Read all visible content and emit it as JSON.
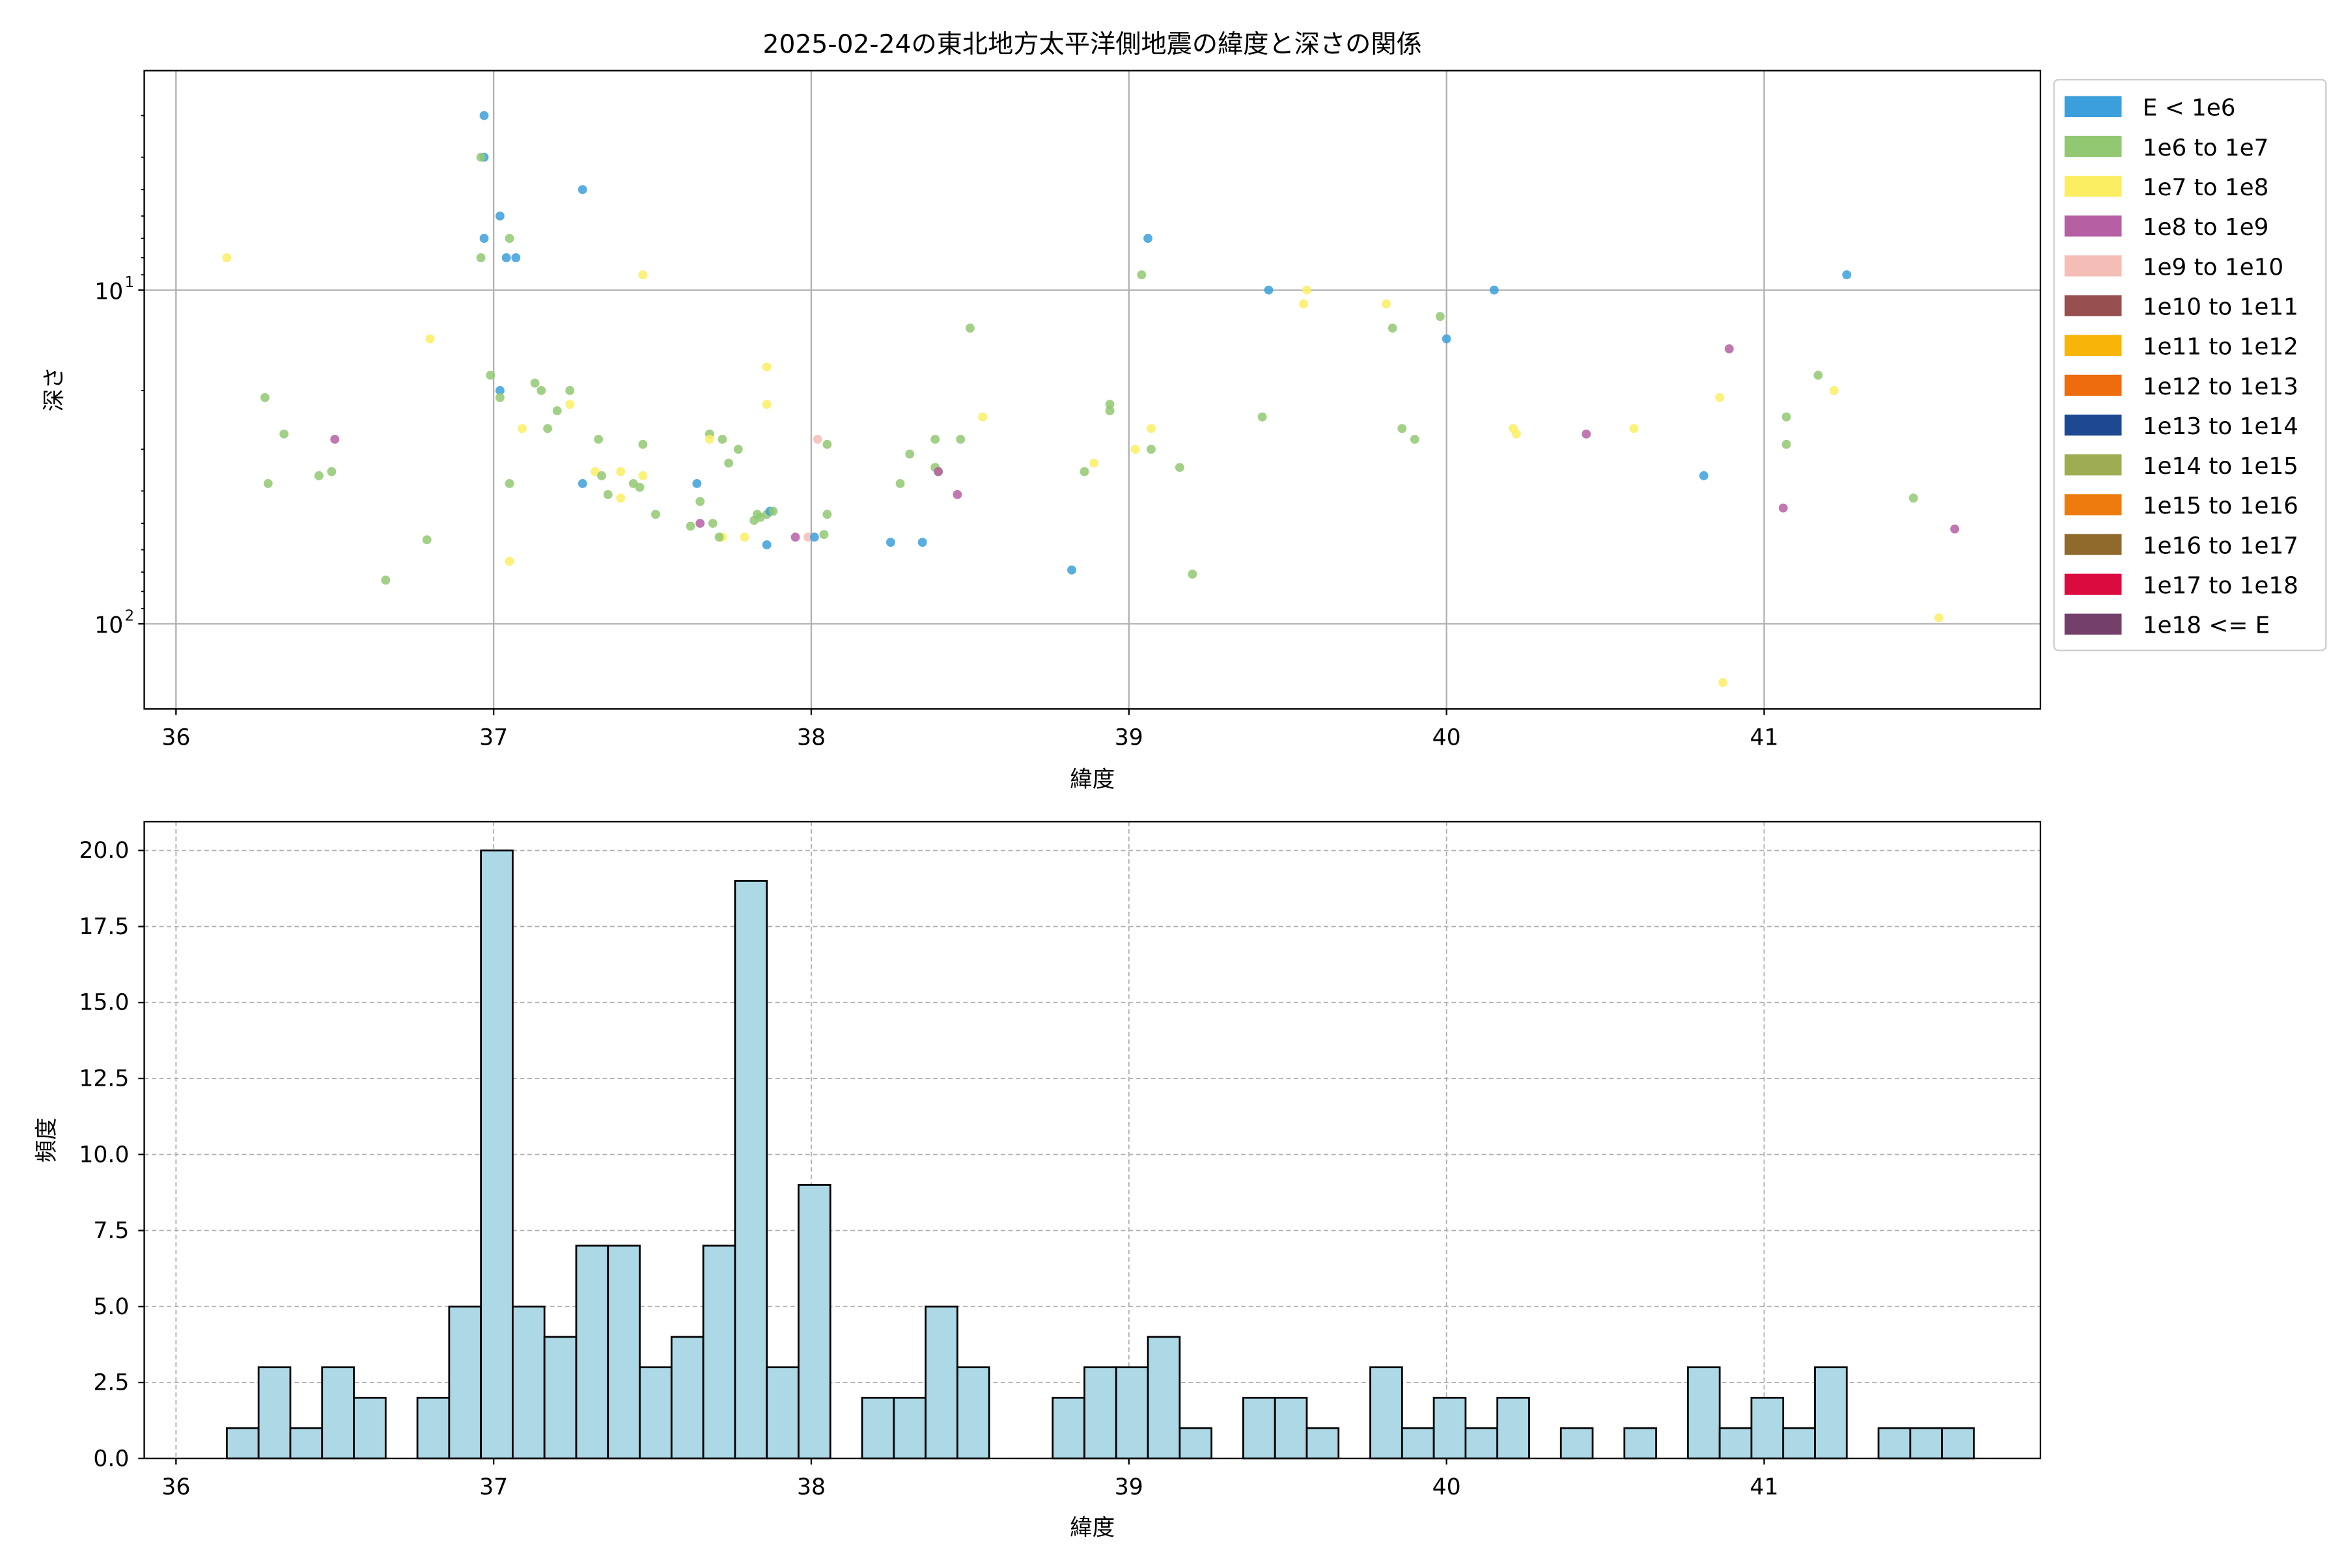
{
  "chart_data": [
    {
      "type": "scatter",
      "title": "2025-02-24の東北地方太平洋側地震の緯度と深さの関係",
      "xlabel": "緯度",
      "ylabel": "深さ",
      "xlim": [
        35.9,
        41.87
      ],
      "ylim": [
        180,
        2.2
      ],
      "y_scale": "log",
      "y_inverted": true,
      "x_ticks": [
        "36",
        "37",
        "38",
        "39",
        "40",
        "41"
      ],
      "x_tick_values": [
        36,
        37,
        38,
        39,
        40,
        41
      ],
      "y_ticks": [
        "10",
        "10"
      ],
      "y_tick_values": [
        10,
        100
      ],
      "y_tick_exponents": [
        "1",
        "2"
      ],
      "grid": true,
      "legend_position": "outside-right",
      "legend": [
        {
          "label": "E < 1e6",
          "color": "#3b9fdc"
        },
        {
          "label": "1e6 to 1e7",
          "color": "#92c872"
        },
        {
          "label": "1e7 to 1e8",
          "color": "#fbee62"
        },
        {
          "label": "1e8 to 1e9",
          "color": "#b65fa3"
        },
        {
          "label": "1e9 to 1e10",
          "color": "#f4bdb5"
        },
        {
          "label": "1e10 to 1e11",
          "color": "#984f4f"
        },
        {
          "label": "1e11 to 1e12",
          "color": "#f7b50a"
        },
        {
          "label": "1e12 to 1e13",
          "color": "#ee6b0e"
        },
        {
          "label": "1e13 to 1e14",
          "color": "#1c4991"
        },
        {
          "label": "1e14 to 1e15",
          "color": "#9ead52"
        },
        {
          "label": "1e15 to 1e16",
          "color": "#ed7b0e"
        },
        {
          "label": "1e16 to 1e17",
          "color": "#906a2c"
        },
        {
          "label": "1e17 to 1e18",
          "color": "#dc0b3f"
        },
        {
          "label": "1e18 <= E",
          "color": "#743f6b"
        }
      ],
      "points": [
        [
          36.97,
          3.0,
          0
        ],
        [
          36.97,
          4.0,
          0
        ],
        [
          36.96,
          4.0,
          1
        ],
        [
          37.28,
          5.0,
          0
        ],
        [
          37.02,
          6.0,
          0
        ],
        [
          36.97,
          7.0,
          0
        ],
        [
          37.05,
          7.0,
          1
        ],
        [
          37.04,
          8.0,
          0
        ],
        [
          37.07,
          8.0,
          0
        ],
        [
          36.96,
          8.0,
          1
        ],
        [
          36.16,
          8.0,
          2
        ],
        [
          37.47,
          9.0,
          2
        ],
        [
          39.06,
          7.0,
          0
        ],
        [
          39.04,
          9.0,
          1
        ],
        [
          41.26,
          9.0,
          0
        ],
        [
          39.44,
          10.0,
          0
        ],
        [
          39.56,
          10.0,
          2
        ],
        [
          39.55,
          11.0,
          2
        ],
        [
          40.15,
          10.0,
          0
        ],
        [
          39.81,
          11.0,
          2
        ],
        [
          39.98,
          12.0,
          1
        ],
        [
          39.83,
          13.0,
          1
        ],
        [
          40.0,
          14.0,
          0
        ],
        [
          38.5,
          13.0,
          1
        ],
        [
          36.8,
          14.0,
          2
        ],
        [
          36.99,
          18.0,
          1
        ],
        [
          37.02,
          20.0,
          0
        ],
        [
          37.02,
          21.0,
          1
        ],
        [
          37.13,
          19.0,
          1
        ],
        [
          37.15,
          20.0,
          1
        ],
        [
          37.24,
          20.0,
          1
        ],
        [
          37.2,
          23.0,
          1
        ],
        [
          37.24,
          22.0,
          2
        ],
        [
          37.86,
          17.0,
          2
        ],
        [
          37.86,
          22.0,
          2
        ],
        [
          36.28,
          21.0,
          1
        ],
        [
          40.89,
          15.0,
          3
        ],
        [
          41.17,
          18.0,
          1
        ],
        [
          41.22,
          20.0,
          2
        ],
        [
          40.86,
          21.0,
          2
        ],
        [
          41.07,
          24.0,
          1
        ],
        [
          38.94,
          22.0,
          1
        ],
        [
          38.94,
          23.0,
          1
        ],
        [
          39.42,
          24.0,
          1
        ],
        [
          37.17,
          26.0,
          1
        ],
        [
          37.09,
          26.0,
          2
        ],
        [
          36.34,
          27.0,
          1
        ],
        [
          36.5,
          28.0,
          3
        ],
        [
          37.33,
          28.0,
          1
        ],
        [
          37.47,
          29.0,
          1
        ],
        [
          37.68,
          27.0,
          1
        ],
        [
          37.68,
          28.0,
          2
        ],
        [
          37.72,
          28.0,
          1
        ],
        [
          37.77,
          30.0,
          1
        ],
        [
          38.05,
          29.0,
          1
        ],
        [
          38.39,
          28.0,
          1
        ],
        [
          38.47,
          28.0,
          1
        ],
        [
          38.54,
          24.0,
          2
        ],
        [
          39.07,
          26.0,
          2
        ],
        [
          39.07,
          30.0,
          1
        ],
        [
          39.02,
          30.0,
          2
        ],
        [
          39.86,
          26.0,
          1
        ],
        [
          39.9,
          28.0,
          1
        ],
        [
          40.21,
          26.0,
          2
        ],
        [
          40.22,
          27.0,
          2
        ],
        [
          40.44,
          27.0,
          3
        ],
        [
          40.59,
          26.0,
          2
        ],
        [
          41.07,
          29.0,
          1
        ],
        [
          36.29,
          38.0,
          1
        ],
        [
          36.45,
          36.0,
          1
        ],
        [
          36.49,
          35.0,
          1
        ],
        [
          37.05,
          38.0,
          1
        ],
        [
          37.32,
          35.0,
          2
        ],
        [
          37.34,
          36.0,
          1
        ],
        [
          37.28,
          38.0,
          0
        ],
        [
          37.36,
          41.0,
          1
        ],
        [
          37.4,
          35.0,
          2
        ],
        [
          37.4,
          42.0,
          2
        ],
        [
          37.44,
          38.0,
          1
        ],
        [
          37.46,
          39.0,
          1
        ],
        [
          37.47,
          36.0,
          2
        ],
        [
          37.51,
          47.0,
          1
        ],
        [
          37.64,
          38.0,
          0
        ],
        [
          37.65,
          43.0,
          1
        ],
        [
          37.74,
          33.0,
          1
        ],
        [
          38.28,
          38.0,
          1
        ],
        [
          38.31,
          31.0,
          1
        ],
        [
          38.39,
          34.0,
          1
        ],
        [
          38.4,
          35.0,
          1
        ],
        [
          38.4,
          35.0,
          3
        ],
        [
          38.46,
          41.0,
          3
        ],
        [
          38.86,
          35.0,
          1
        ],
        [
          38.89,
          33.0,
          2
        ],
        [
          39.16,
          34.0,
          1
        ],
        [
          41.06,
          45.0,
          3
        ],
        [
          41.47,
          42.0,
          1
        ],
        [
          37.62,
          51.0,
          1
        ],
        [
          37.65,
          50.0,
          3
        ],
        [
          37.69,
          50.0,
          1
        ],
        [
          37.72,
          55.0,
          2
        ],
        [
          37.71,
          55.0,
          1
        ],
        [
          37.79,
          55.0,
          2
        ],
        [
          37.82,
          49.0,
          1
        ],
        [
          37.83,
          47.0,
          1
        ],
        [
          37.86,
          47.0,
          1
        ],
        [
          37.87,
          46.0,
          0
        ],
        [
          37.88,
          46.0,
          1
        ],
        [
          37.84,
          48.0,
          1
        ],
        [
          37.86,
          58.0,
          0
        ],
        [
          37.95,
          55.0,
          3
        ],
        [
          37.99,
          55.0,
          4
        ],
        [
          38.01,
          55.0,
          0
        ],
        [
          38.04,
          54.0,
          1
        ],
        [
          38.05,
          47.0,
          1
        ],
        [
          38.02,
          28.0,
          4
        ],
        [
          38.25,
          57.0,
          0
        ],
        [
          38.35,
          57.0,
          0
        ],
        [
          36.79,
          56.0,
          1
        ],
        [
          37.05,
          65.0,
          2
        ],
        [
          36.66,
          74.0,
          1
        ],
        [
          38.82,
          69.0,
          0
        ],
        [
          39.2,
          71.0,
          1
        ],
        [
          41.6,
          52.0,
          3
        ],
        [
          41.55,
          96.0,
          2
        ],
        [
          40.81,
          36.0,
          0
        ],
        [
          40.87,
          150.0,
          2
        ]
      ]
    },
    {
      "type": "bar",
      "title": "",
      "xlabel": "緯度",
      "ylabel": "頻度",
      "xlim": [
        35.9,
        41.87
      ],
      "ylim": [
        0,
        20.95
      ],
      "x_ticks": [
        "36",
        "37",
        "38",
        "39",
        "40",
        "41"
      ],
      "x_tick_values": [
        36,
        37,
        38,
        39,
        40,
        41
      ],
      "y_ticks": [
        "0.0",
        "2.5",
        "5.0",
        "7.5",
        "10.0",
        "12.5",
        "15.0",
        "17.5",
        "20.0"
      ],
      "y_tick_values": [
        0,
        2.5,
        5,
        7.5,
        10,
        12.5,
        15,
        17.5,
        20
      ],
      "grid": true,
      "bin_start": 36.16,
      "bin_width": 0.1,
      "values": [
        1,
        3,
        1,
        3,
        2,
        0,
        2,
        5,
        20,
        5,
        4,
        7,
        7,
        3,
        4,
        7,
        19,
        3,
        9,
        0,
        2,
        2,
        5,
        3,
        0,
        0,
        2,
        3,
        3,
        4,
        1,
        0,
        2,
        2,
        1,
        0,
        3,
        1,
        2,
        1,
        2,
        0,
        1,
        0,
        1,
        0,
        3,
        1,
        2,
        1,
        3,
        0,
        1,
        1,
        1
      ],
      "bar_color": "#add8e6",
      "edge_color": "#000000"
    }
  ]
}
